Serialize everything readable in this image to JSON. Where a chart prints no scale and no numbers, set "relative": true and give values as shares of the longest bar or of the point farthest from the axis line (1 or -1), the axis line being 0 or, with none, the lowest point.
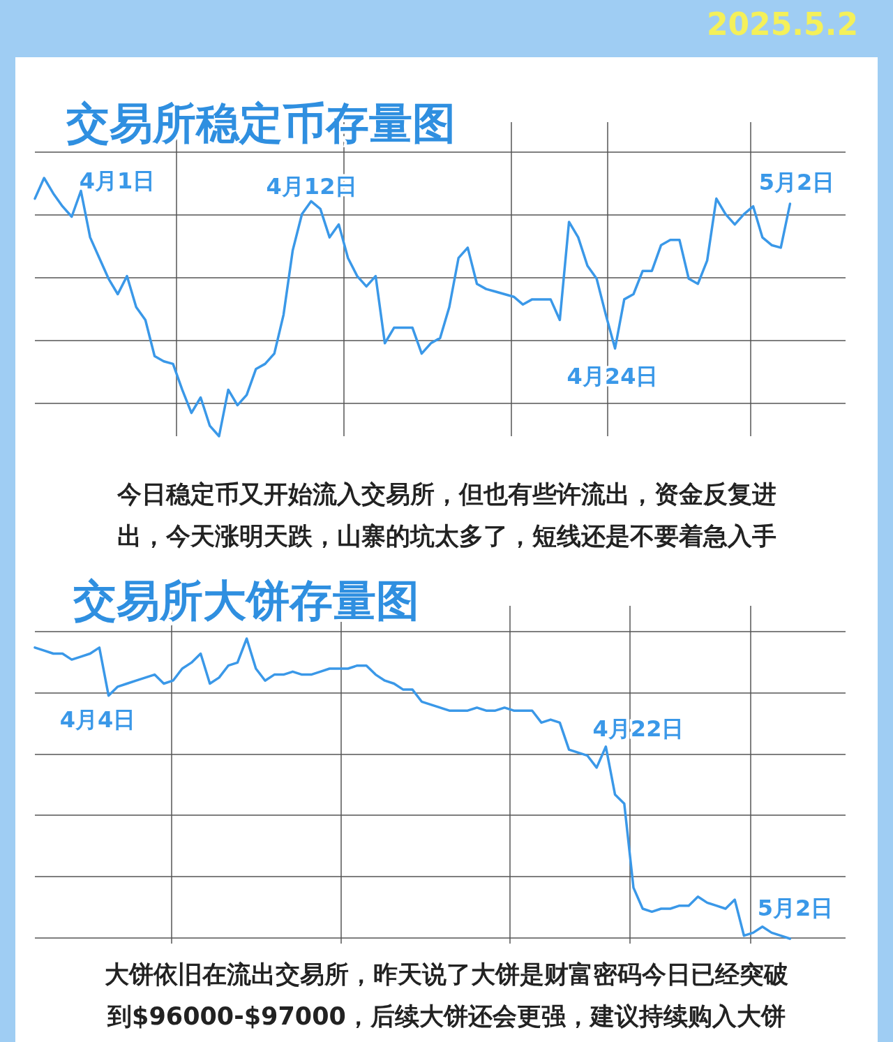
{
  "chart_data": [
    {
      "type": "line",
      "title": "交易所稳定币存量图",
      "subtitle": "2025.5.2",
      "relative": true,
      "grid": true,
      "categories": [
        null,
        null,
        null,
        null,
        null,
        null,
        null,
        null,
        null,
        null,
        null,
        null,
        null,
        null,
        null,
        null,
        null,
        null,
        null,
        null,
        null,
        null,
        null,
        null,
        null,
        null,
        null,
        null,
        null,
        null,
        null,
        null,
        null,
        null,
        null,
        null,
        null,
        null,
        null,
        null,
        null,
        null,
        null,
        null,
        null,
        null,
        null,
        null,
        null,
        null,
        null,
        null,
        null,
        null,
        null,
        null,
        null,
        null,
        null,
        null,
        null,
        null,
        null,
        null,
        null,
        null,
        null,
        null,
        null,
        null,
        null,
        null,
        null,
        null,
        null,
        null,
        null,
        null,
        null,
        null,
        null,
        null,
        null,
        null,
        null,
        null,
        null,
        null
      ],
      "series": [
        {
          "color": "#3a98e8",
          "values": [
            0.92,
            1.0,
            0.94,
            0.89,
            0.85,
            0.95,
            0.77,
            0.69,
            0.61,
            0.55,
            0.62,
            0.5,
            0.45,
            0.31,
            0.29,
            0.28,
            0.18,
            0.09,
            0.15,
            0.04,
            0,
            0.18,
            0.12,
            0.16,
            0.26,
            0.28,
            0.32,
            0.47,
            0.72,
            0.86,
            0.91,
            0.88,
            0.77,
            0.82,
            0.69,
            0.62,
            0.58,
            0.62,
            0.36,
            0.42,
            0.42,
            0.42,
            0.32,
            0.36,
            0.38,
            0.5,
            0.69,
            0.73,
            0.59,
            0.57,
            0.56,
            0.55,
            0.54,
            0.51,
            0.53,
            0.53,
            0.53,
            0.45,
            0.83,
            0.77,
            0.66,
            0.61,
            0.47,
            0.34,
            0.53,
            0.55,
            0.64,
            0.64,
            0.74,
            0.76,
            0.76,
            0.61,
            0.59,
            0.68,
            0.92,
            0.86,
            0.82,
            0.86,
            0.89,
            0.77,
            0.74,
            0.73,
            0.9,
            null,
            null,
            null,
            null,
            null
          ]
        }
      ],
      "annotations": [
        "4月1日",
        "4月12日",
        "4月24日",
        "5月2日",
        "今日稳定币又开始流入交易所，但也有些许流出，资金反复进出，今天涨明天跌，山寨的坑太多了，短线还是不要着急入手"
      ]
    },
    {
      "type": "line",
      "title": "交易所大饼存量图",
      "relative": true,
      "grid": true,
      "categories": [
        null,
        null,
        null,
        null,
        null,
        null,
        null,
        null,
        null,
        null,
        null,
        null,
        null,
        null,
        null,
        null,
        null,
        null,
        null,
        null,
        null,
        null,
        null,
        null,
        null,
        null,
        null,
        null,
        null,
        null,
        null,
        null,
        null,
        null,
        null,
        null,
        null,
        null,
        null,
        null,
        null,
        null,
        null,
        null,
        null,
        null,
        null,
        null,
        null,
        null,
        null,
        null,
        null,
        null,
        null,
        null,
        null,
        null,
        null,
        null,
        null,
        null,
        null,
        null,
        null,
        null,
        null,
        null,
        null,
        null,
        null,
        null,
        null,
        null,
        null,
        null,
        null,
        null,
        null,
        null,
        null,
        null,
        null,
        null,
        null,
        null,
        null,
        null
      ],
      "series": [
        {
          "color": "#3a98e8",
          "values": [
            0.97,
            0.96,
            0.95,
            0.95,
            0.93,
            0.94,
            0.95,
            0.97,
            0.81,
            0.84,
            0.85,
            0.86,
            0.87,
            0.88,
            0.85,
            0.86,
            0.9,
            0.92,
            0.95,
            0.85,
            0.87,
            0.91,
            0.92,
            1.0,
            0.9,
            0.86,
            0.88,
            0.88,
            0.89,
            0.88,
            0.88,
            0.89,
            0.9,
            0.9,
            0.9,
            0.91,
            0.91,
            0.88,
            0.86,
            0.85,
            0.83,
            0.83,
            0.79,
            0.78,
            0.77,
            0.76,
            0.76,
            0.76,
            0.77,
            0.76,
            0.76,
            0.77,
            0.76,
            0.76,
            0.76,
            0.72,
            0.73,
            0.72,
            0.63,
            0.62,
            0.61,
            0.57,
            0.64,
            0.48,
            0.45,
            0.17,
            0.1,
            0.09,
            0.1,
            0.1,
            0.11,
            0.11,
            0.14,
            0.12,
            0.11,
            0.1,
            0.13,
            0.01,
            0.02,
            0.04,
            0.02,
            0.01,
            0,
            null,
            null,
            null,
            null,
            null
          ]
        }
      ],
      "annotations": [
        "4月4日",
        "4月22日",
        "5月2日",
        "大饼依旧在流出交易所，昨天说了大饼是财富密码今日已经突破到$96000-$97000，后续大饼还会更强，建议持续购入大饼"
      ]
    }
  ]
}
